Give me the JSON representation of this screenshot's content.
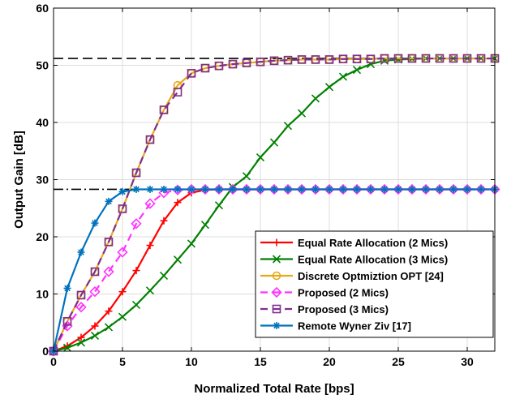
{
  "chart_data": {
    "type": "line",
    "xlabel": "Normalized Total Rate [bps]",
    "ylabel": "Output Gain [dB]",
    "xlim": [
      0,
      32
    ],
    "ylim": [
      0,
      60
    ],
    "xticks": [
      0,
      5,
      10,
      15,
      20,
      25,
      30
    ],
    "yticks": [
      0,
      10,
      20,
      30,
      40,
      50,
      60
    ],
    "xtick_labels": [
      "0",
      "5",
      "10",
      "15",
      "20",
      "25",
      "30"
    ],
    "ytick_labels": [
      "0",
      "10",
      "20",
      "30",
      "40",
      "50",
      "60"
    ],
    "grid": true,
    "legend_position": "bottom-right",
    "reference_lines": [
      {
        "y": 51.2,
        "style": "dashed",
        "color": "#000000"
      },
      {
        "y": 28.3,
        "style": "dash-dot",
        "color": "#000000"
      }
    ],
    "series": [
      {
        "name": "Equal Rate Allocation (2 Mics)",
        "color": "#ff0000",
        "marker": "plus",
        "line": "solid",
        "x": [
          0,
          1,
          2,
          3,
          4,
          5,
          6,
          7,
          8,
          9,
          10,
          11,
          12,
          13,
          14,
          15,
          16,
          17,
          18,
          19,
          20,
          21,
          22,
          23,
          24,
          25,
          26,
          27,
          28,
          29,
          30,
          31,
          32
        ],
        "y": [
          0,
          0.9,
          2.4,
          4.4,
          7,
          10.4,
          14.1,
          18.5,
          22.8,
          26,
          27.7,
          28.2,
          28.3,
          28.3,
          28.3,
          28.3,
          28.3,
          28.3,
          28.3,
          28.3,
          28.3,
          28.3,
          28.3,
          28.3,
          28.3,
          28.3,
          28.3,
          28.3,
          28.3,
          28.3,
          28.3,
          28.3,
          28.3
        ]
      },
      {
        "name": "Equal Rate Allocation (3 Mics)",
        "color": "#008000",
        "marker": "x",
        "line": "solid",
        "x": [
          0,
          1,
          2,
          3,
          4,
          5,
          6,
          7,
          8,
          9,
          10,
          11,
          12,
          13,
          14,
          15,
          16,
          17,
          18,
          19,
          20,
          21,
          22,
          23,
          24,
          25,
          26,
          27,
          28,
          29,
          30,
          31,
          32
        ],
        "y": [
          0,
          0.6,
          1.5,
          2.7,
          4.2,
          6,
          8.1,
          10.6,
          13.2,
          16,
          18.8,
          22.1,
          25.5,
          28.7,
          30.6,
          33.9,
          36.5,
          39.4,
          41.6,
          44.2,
          46.2,
          48,
          49.2,
          50.2,
          50.8,
          51,
          51.1,
          51.2,
          51.2,
          51.2,
          51.2,
          51.2,
          51.2
        ]
      },
      {
        "name": "Discrete Optmiztion OPT [24]",
        "color": "#e8a91a",
        "marker": "circle",
        "line": "solid",
        "x": [
          0,
          1,
          2,
          3,
          4,
          5,
          6,
          7,
          8,
          9,
          10,
          11,
          12,
          13,
          14,
          15,
          16,
          17,
          18,
          19,
          20,
          21,
          22,
          23,
          24,
          25,
          26,
          27,
          28,
          29,
          30,
          31,
          32
        ],
        "y": [
          0,
          5.2,
          9.8,
          13.9,
          19.1,
          24.9,
          31.2,
          37,
          42.2,
          46.5,
          48.6,
          49.5,
          49.9,
          50.2,
          50.4,
          50.6,
          50.8,
          50.9,
          51,
          51,
          51,
          51.1,
          51.1,
          51.1,
          51.2,
          51.2,
          51.2,
          51.2,
          51.2,
          51.2,
          51.2,
          51.2,
          51.2
        ]
      },
      {
        "name": "Proposed (2 Mics)",
        "color": "#ff33ff",
        "marker": "diamond",
        "line": "dashed",
        "x": [
          0,
          1,
          2,
          3,
          4,
          5,
          6,
          7,
          8,
          9,
          10,
          11,
          12,
          13,
          14,
          15,
          16,
          17,
          18,
          19,
          20,
          21,
          22,
          23,
          24,
          25,
          26,
          27,
          28,
          29,
          30,
          31,
          32
        ],
        "y": [
          0,
          4.4,
          7.7,
          10.4,
          13.9,
          17.3,
          22.3,
          25.8,
          27.7,
          28.2,
          28.3,
          28.3,
          28.3,
          28.3,
          28.3,
          28.3,
          28.3,
          28.3,
          28.3,
          28.3,
          28.3,
          28.3,
          28.3,
          28.3,
          28.3,
          28.3,
          28.3,
          28.3,
          28.3,
          28.3,
          28.3,
          28.3,
          28.3
        ]
      },
      {
        "name": "Proposed (3 Mics)",
        "color": "#7e2f8e",
        "marker": "square",
        "line": "dashed",
        "x": [
          0,
          1,
          2,
          3,
          4,
          5,
          6,
          7,
          8,
          9,
          10,
          11,
          12,
          13,
          14,
          15,
          16,
          17,
          18,
          19,
          20,
          21,
          22,
          23,
          24,
          25,
          26,
          27,
          28,
          29,
          30,
          31,
          32
        ],
        "y": [
          0,
          5.2,
          9.8,
          13.9,
          19.1,
          24.9,
          31.2,
          37,
          42.2,
          45.3,
          48.6,
          49.5,
          49.9,
          50.2,
          50.4,
          50.6,
          50.8,
          50.9,
          51,
          51,
          51,
          51.1,
          51.1,
          51.1,
          51.2,
          51.2,
          51.2,
          51.2,
          51.2,
          51.2,
          51.2,
          51.2,
          51.2
        ]
      },
      {
        "name": "Remote Wyner Ziv [17]",
        "color": "#0072bd",
        "marker": "asterisk",
        "line": "solid",
        "x": [
          0,
          1,
          2,
          3,
          4,
          5,
          6,
          7,
          8,
          9,
          10,
          11,
          12,
          13,
          14,
          15,
          16,
          17,
          18,
          19,
          20,
          21,
          22,
          23,
          24,
          25,
          26,
          27,
          28,
          29,
          30,
          31,
          32
        ],
        "y": [
          0,
          11,
          17.3,
          22.4,
          26.2,
          27.9,
          28.3,
          28.3,
          28.3,
          28.3,
          28.3,
          28.3,
          28.3,
          28.3,
          28.3,
          28.3,
          28.3,
          28.3,
          28.3,
          28.3,
          28.3,
          28.3,
          28.3,
          28.3,
          28.3,
          28.3,
          28.3,
          28.3,
          28.3,
          28.3,
          28.3,
          28.3,
          28.3
        ]
      }
    ]
  }
}
